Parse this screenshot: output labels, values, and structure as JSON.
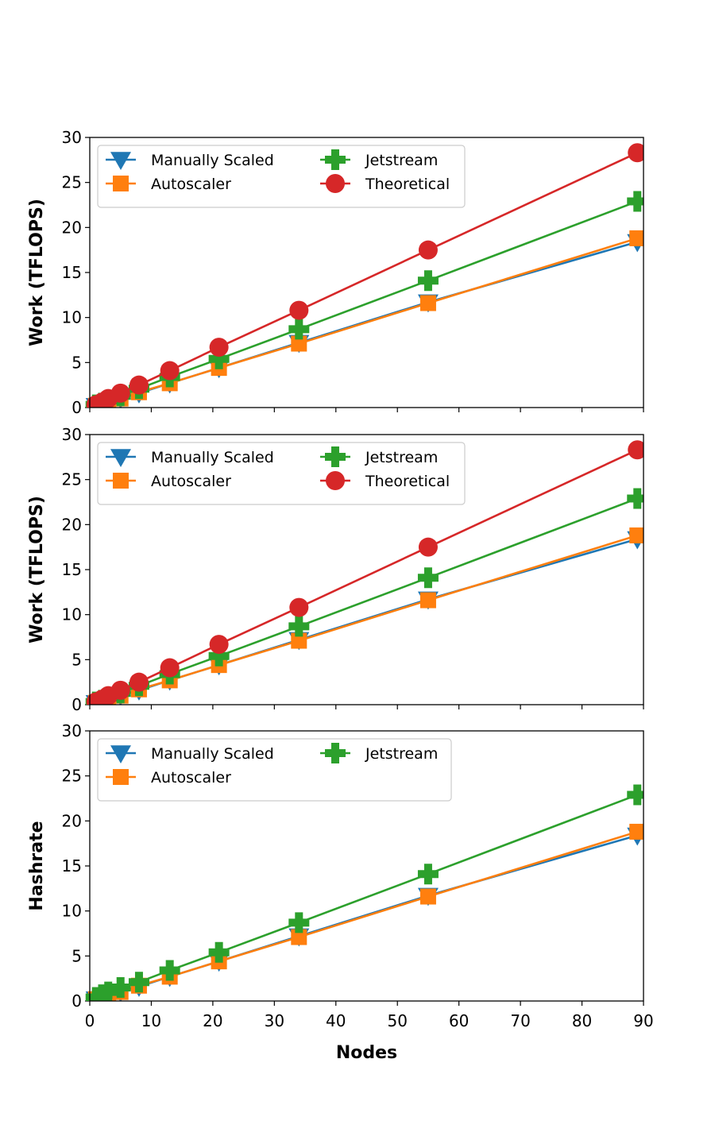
{
  "chart_data": [
    {
      "type": "line",
      "ylabel": "Work (TFLOPS)",
      "xlabel": "",
      "xlim": [
        0,
        90
      ],
      "ylim": [
        0,
        30
      ],
      "yticks": [
        "0",
        "5",
        "10",
        "15",
        "20",
        "25",
        "30"
      ],
      "xtick_values": [
        0,
        10,
        20,
        30,
        40,
        50,
        60,
        70,
        80,
        90
      ],
      "xtick_labels_shown": false,
      "legend_position": "upper-left",
      "legend_columns": 2,
      "x": [
        1,
        2,
        3,
        5,
        8,
        13,
        21,
        34,
        55,
        89
      ],
      "series": [
        {
          "name": "Manually Scaled",
          "color": "#1f77b4",
          "marker": "triangle-down",
          "values": [
            0.2,
            0.4,
            0.6,
            1.0,
            1.6,
            2.7,
            4.4,
            7.2,
            11.7,
            18.4
          ]
        },
        {
          "name": "Autoscaler",
          "color": "#ff7f0e",
          "marker": "square",
          "values": [
            0.2,
            0.4,
            0.6,
            1.0,
            1.7,
            2.7,
            4.4,
            7.1,
            11.6,
            18.8
          ]
        },
        {
          "name": "Jetstream",
          "color": "#2ca02c",
          "marker": "plus",
          "values": [
            0.3,
            0.5,
            0.8,
            1.3,
            2.1,
            3.4,
            5.4,
            8.7,
            14.1,
            22.9
          ]
        },
        {
          "name": "Theoretical",
          "color": "#d62728",
          "marker": "circle",
          "values": [
            0.3,
            0.6,
            1.0,
            1.6,
            2.5,
            4.1,
            6.7,
            10.8,
            17.5,
            28.3
          ]
        }
      ]
    },
    {
      "type": "line",
      "ylabel": "Work (TFLOPS)",
      "xlabel": "",
      "xlim": [
        0,
        90
      ],
      "ylim": [
        0,
        30
      ],
      "yticks": [
        "0",
        "5",
        "10",
        "15",
        "20",
        "25",
        "30"
      ],
      "xtick_values": [
        0,
        10,
        20,
        30,
        40,
        50,
        60,
        70,
        80,
        90
      ],
      "xtick_labels_shown": false,
      "legend_position": "upper-left",
      "legend_columns": 2,
      "x": [
        1,
        2,
        3,
        5,
        8,
        13,
        21,
        34,
        55,
        89
      ],
      "series": [
        {
          "name": "Manually Scaled",
          "color": "#1f77b4",
          "marker": "triangle-down",
          "values": [
            0.2,
            0.4,
            0.6,
            1.0,
            1.6,
            2.7,
            4.4,
            7.2,
            11.7,
            18.4
          ]
        },
        {
          "name": "Autoscaler",
          "color": "#ff7f0e",
          "marker": "square",
          "values": [
            0.2,
            0.4,
            0.6,
            1.0,
            1.7,
            2.7,
            4.4,
            7.1,
            11.6,
            18.8
          ]
        },
        {
          "name": "Jetstream",
          "color": "#2ca02c",
          "marker": "plus",
          "values": [
            0.3,
            0.5,
            0.8,
            1.3,
            2.1,
            3.4,
            5.4,
            8.7,
            14.1,
            22.9
          ]
        },
        {
          "name": "Theoretical",
          "color": "#d62728",
          "marker": "circle",
          "values": [
            0.3,
            0.6,
            1.0,
            1.6,
            2.5,
            4.1,
            6.7,
            10.8,
            17.5,
            28.3
          ]
        }
      ]
    },
    {
      "type": "line",
      "ylabel": "Hashrate",
      "xlabel": "Nodes",
      "xlim": [
        0,
        90
      ],
      "ylim": [
        0,
        30
      ],
      "yticks": [
        "0",
        "5",
        "10",
        "15",
        "20",
        "25",
        "30"
      ],
      "xtick_values": [
        0,
        10,
        20,
        30,
        40,
        50,
        60,
        70,
        80,
        90
      ],
      "xticks": [
        "0",
        "10",
        "20",
        "30",
        "40",
        "50",
        "60",
        "70",
        "80",
        "90"
      ],
      "xtick_labels_shown": true,
      "legend_position": "upper-left",
      "legend_columns": 2,
      "x": [
        1,
        2,
        3,
        5,
        8,
        13,
        21,
        34,
        55,
        89
      ],
      "series": [
        {
          "name": "Manually Scaled",
          "color": "#1f77b4",
          "marker": "triangle-down",
          "values": [
            0.2,
            0.4,
            0.6,
            1.0,
            1.6,
            2.7,
            4.4,
            7.2,
            11.7,
            18.4
          ]
        },
        {
          "name": "Autoscaler",
          "color": "#ff7f0e",
          "marker": "square",
          "values": [
            0.2,
            0.4,
            0.6,
            1.0,
            1.7,
            2.7,
            4.4,
            7.1,
            11.6,
            18.8
          ]
        },
        {
          "name": "Jetstream",
          "color": "#2ca02c",
          "marker": "plus",
          "values": [
            0.4,
            0.7,
            1.0,
            1.5,
            2.1,
            3.4,
            5.4,
            8.7,
            14.1,
            22.9
          ]
        }
      ]
    }
  ]
}
